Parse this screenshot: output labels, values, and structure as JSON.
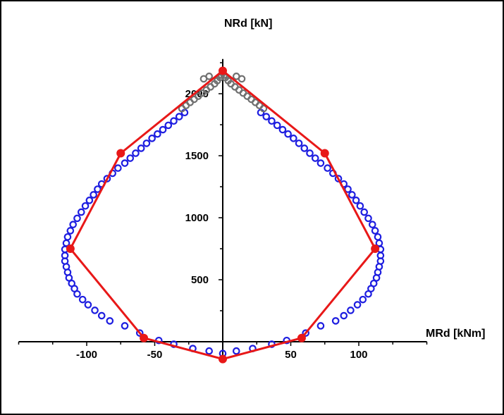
{
  "chart_data": {
    "type": "scatter",
    "title": "",
    "xlabel": "MRd [kNm]",
    "ylabel": "NRd [kN]",
    "xlim": [
      -150,
      150
    ],
    "ylim": [
      -140,
      2280
    ],
    "x_ticks": [
      -100,
      -50,
      50,
      100
    ],
    "x_tick_labels": [
      "-100",
      "-50",
      "50",
      "100"
    ],
    "y_ticks": [
      500,
      1000,
      1500,
      2000
    ],
    "y_tick_labels": [
      "500",
      "1000",
      "1500",
      "2000"
    ],
    "grid": false,
    "colors": {
      "blue_markers": "#1d1de0",
      "gray_markers": "#707070",
      "red_series": "#e81818",
      "axes": "#000000"
    },
    "series": [
      {
        "marker": "open-circle",
        "color": "#1d1de0",
        "points": [
          [
            0,
            -95
          ],
          [
            -10,
            -75
          ],
          [
            -22,
            -55
          ],
          [
            -36,
            -20
          ],
          [
            -47,
            10
          ],
          [
            -61,
            70
          ],
          [
            -72,
            128
          ],
          [
            -83,
            168
          ],
          [
            -89,
            210
          ],
          [
            -94,
            253
          ],
          [
            -99,
            298
          ],
          [
            -103,
            340
          ],
          [
            -107,
            385
          ],
          [
            -109,
            428
          ],
          [
            -111,
            470
          ],
          [
            -113,
            515
          ],
          [
            -114,
            560
          ],
          [
            -115,
            605
          ],
          [
            -116,
            650
          ],
          [
            -116,
            695
          ],
          [
            -116,
            745
          ],
          [
            -115,
            795
          ],
          [
            -114,
            845
          ],
          [
            -112,
            895
          ],
          [
            -110,
            945
          ],
          [
            -107,
            995
          ],
          [
            -104,
            1045
          ],
          [
            -101,
            1095
          ],
          [
            -98,
            1140
          ],
          [
            -95,
            1185
          ],
          [
            -92,
            1230
          ],
          [
            -89,
            1272
          ],
          [
            -85,
            1315
          ],
          [
            -81,
            1358
          ],
          [
            -77,
            1400
          ],
          [
            -72,
            1440
          ],
          [
            -68,
            1480
          ],
          [
            -64,
            1520
          ],
          [
            -60,
            1560
          ],
          [
            -56,
            1600
          ],
          [
            -52,
            1640
          ],
          [
            -48,
            1675
          ],
          [
            -44,
            1710
          ],
          [
            -40,
            1745
          ],
          [
            -36,
            1780
          ],
          [
            -32,
            1815
          ],
          [
            -28,
            1848
          ],
          [
            10,
            -75
          ],
          [
            22,
            -55
          ],
          [
            36,
            -20
          ],
          [
            47,
            10
          ],
          [
            61,
            70
          ],
          [
            72,
            128
          ],
          [
            83,
            168
          ],
          [
            89,
            210
          ],
          [
            94,
            253
          ],
          [
            99,
            298
          ],
          [
            103,
            340
          ],
          [
            107,
            385
          ],
          [
            109,
            428
          ],
          [
            111,
            470
          ],
          [
            113,
            515
          ],
          [
            114,
            560
          ],
          [
            115,
            605
          ],
          [
            116,
            650
          ],
          [
            116,
            695
          ],
          [
            116,
            745
          ],
          [
            115,
            795
          ],
          [
            114,
            845
          ],
          [
            112,
            895
          ],
          [
            110,
            945
          ],
          [
            107,
            995
          ],
          [
            104,
            1045
          ],
          [
            101,
            1095
          ],
          [
            98,
            1140
          ],
          [
            95,
            1185
          ],
          [
            92,
            1230
          ],
          [
            89,
            1272
          ],
          [
            85,
            1315
          ],
          [
            81,
            1358
          ],
          [
            77,
            1400
          ],
          [
            72,
            1440
          ],
          [
            68,
            1480
          ],
          [
            64,
            1520
          ],
          [
            60,
            1560
          ],
          [
            56,
            1600
          ],
          [
            52,
            1640
          ],
          [
            48,
            1675
          ],
          [
            44,
            1710
          ],
          [
            40,
            1745
          ],
          [
            36,
            1780
          ],
          [
            32,
            1815
          ],
          [
            28,
            1848
          ]
        ]
      },
      {
        "marker": "open-circle",
        "color": "#707070",
        "points": [
          [
            -30,
            1880
          ],
          [
            -27,
            1905
          ],
          [
            -24,
            1930
          ],
          [
            -21,
            1955
          ],
          [
            -18,
            1980
          ],
          [
            -15,
            2005
          ],
          [
            -12,
            2030
          ],
          [
            -9,
            2055
          ],
          [
            -6,
            2080
          ],
          [
            -4,
            2105
          ],
          [
            -2,
            2130
          ],
          [
            -1,
            2150
          ],
          [
            -14,
            2120
          ],
          [
            -10,
            2140
          ],
          [
            30,
            1880
          ],
          [
            27,
            1905
          ],
          [
            24,
            1930
          ],
          [
            21,
            1955
          ],
          [
            18,
            1980
          ],
          [
            15,
            2005
          ],
          [
            12,
            2030
          ],
          [
            9,
            2055
          ],
          [
            6,
            2080
          ],
          [
            4,
            2105
          ],
          [
            2,
            2130
          ],
          [
            1,
            2150
          ],
          [
            14,
            2120
          ],
          [
            10,
            2140
          ]
        ]
      },
      {
        "marker": "filled-circle",
        "line": true,
        "color": "#e81818",
        "points": [
          [
            0,
            2185
          ],
          [
            -75,
            1520
          ],
          [
            -112,
            750
          ],
          [
            -58,
            30
          ],
          [
            0,
            -140
          ],
          [
            58,
            30
          ],
          [
            112,
            750
          ],
          [
            75,
            1520
          ],
          [
            0,
            2185
          ]
        ]
      }
    ]
  }
}
